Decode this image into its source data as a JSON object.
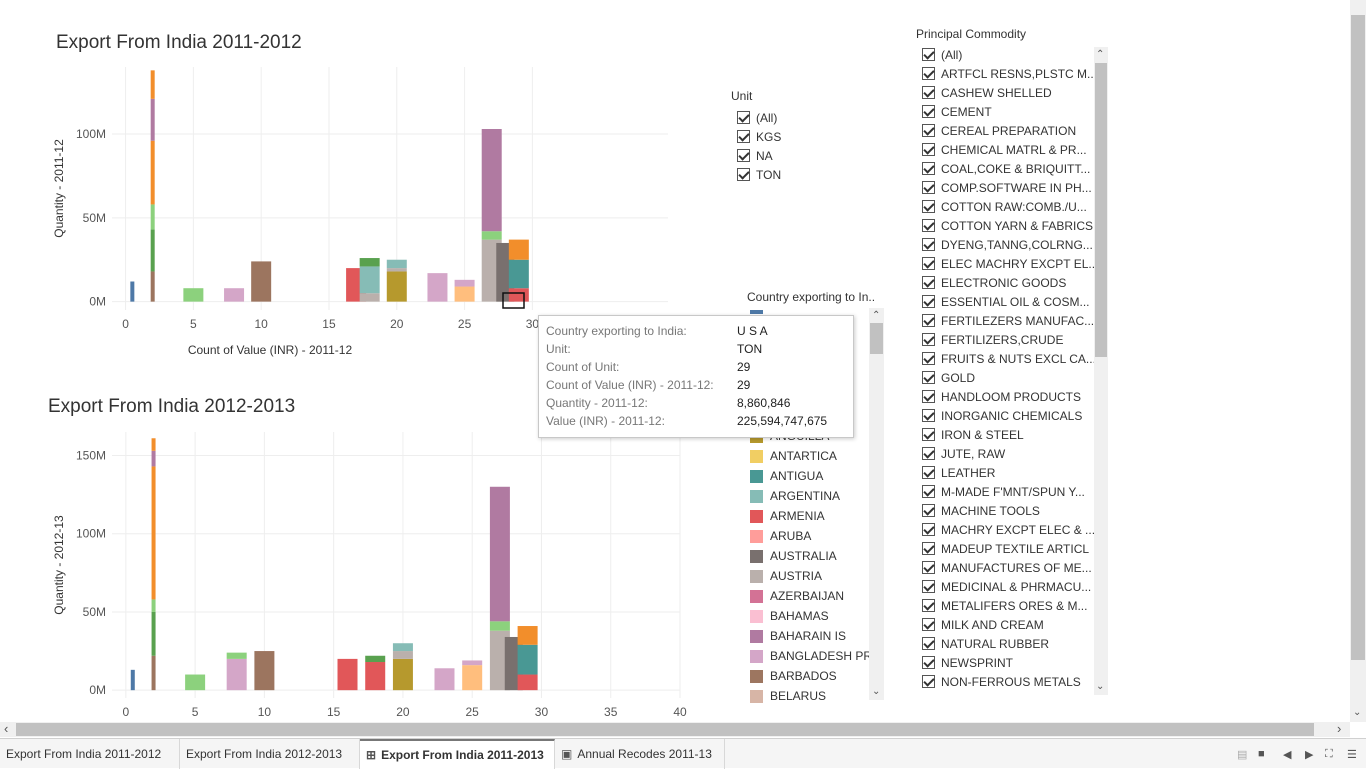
{
  "charts": [
    {
      "title": "Export From India  2011-2012",
      "xlabel": "Count of Value (INR) - 2011-12",
      "ylabel": "Quantity - 2011-12",
      "xticks": [
        "0",
        "5",
        "10",
        "15",
        "20",
        "25",
        "30"
      ],
      "yticks": [
        "0M",
        "50M",
        "100M"
      ]
    },
    {
      "title": "Export From India 2012-2013",
      "xlabel": "",
      "ylabel": "Quantity - 2012-13",
      "xticks": [
        "0",
        "5",
        "10",
        "15",
        "20",
        "25",
        "30",
        "35",
        "40"
      ],
      "yticks": [
        "0M",
        "50M",
        "100M",
        "150M"
      ]
    }
  ],
  "chart_data": [
    {
      "type": "bar",
      "stacked": true,
      "title": "Export From India  2011-2012",
      "xlabel": "Count of Value (INR) - 2011-12",
      "ylabel": "Quantity - 2011-12",
      "xlim": [
        -1,
        40
      ],
      "ylim": [
        -5,
        140
      ],
      "grid": true,
      "bars": [
        {
          "x": 0.5,
          "segments": [
            {
              "v": 12,
              "c": "#4e79a7"
            }
          ]
        },
        {
          "x": 2,
          "segments": [
            {
              "v": 18,
              "c": "#9c755f"
            },
            {
              "v": 25,
              "c": "#59a14f"
            },
            {
              "v": 15,
              "c": "#8cd17d"
            },
            {
              "v": 38,
              "c": "#f28e2b"
            },
            {
              "v": 25,
              "c": "#b07aa1"
            },
            {
              "v": 17,
              "c": "#f28e2b"
            }
          ]
        },
        {
          "x": 5,
          "segments": [
            {
              "v": 8,
              "c": "#8cd17d"
            }
          ]
        },
        {
          "x": 8,
          "segments": [
            {
              "v": 8,
              "c": "#d4a6c8"
            }
          ]
        },
        {
          "x": 10,
          "segments": [
            {
              "v": 24,
              "c": "#9c755f"
            }
          ]
        },
        {
          "x": 17,
          "segments": [
            {
              "v": 20,
              "c": "#e15759"
            }
          ]
        },
        {
          "x": 18,
          "segments": [
            {
              "v": 5,
              "c": "#bab0ac"
            },
            {
              "v": 16,
              "c": "#86bcb6"
            },
            {
              "v": 5,
              "c": "#59a14f"
            }
          ]
        },
        {
          "x": 20,
          "segments": [
            {
              "v": 18,
              "c": "#b6992d"
            },
            {
              "v": 2,
              "c": "#bab0ac"
            },
            {
              "v": 5,
              "c": "#86bcb6"
            }
          ]
        },
        {
          "x": 23,
          "segments": [
            {
              "v": 17,
              "c": "#d4a6c8"
            }
          ]
        },
        {
          "x": 25,
          "segments": [
            {
              "v": 9,
              "c": "#ffbe7d"
            },
            {
              "v": 4,
              "c": "#d4a6c8"
            }
          ]
        },
        {
          "x": 27,
          "segments": [
            {
              "v": 37,
              "c": "#bab0ac"
            },
            {
              "v": 5,
              "c": "#8cd17d"
            },
            {
              "v": 61,
              "c": "#b07aa1"
            }
          ]
        },
        {
          "x": 28,
          "segments": [
            {
              "v": 35,
              "c": "#79706e"
            }
          ]
        },
        {
          "x": 29,
          "segments": [
            {
              "v": 8,
              "c": "#e15759"
            },
            {
              "v": 17,
              "c": "#499894"
            },
            {
              "v": 12,
              "c": "#f28e2b"
            }
          ]
        }
      ]
    },
    {
      "type": "bar",
      "stacked": true,
      "title": "Export From India 2012-2013",
      "xlabel": "",
      "ylabel": "Quantity - 2012-13",
      "xlim": [
        -1,
        40
      ],
      "ylim": [
        -5,
        165
      ],
      "grid": true,
      "bars": [
        {
          "x": 0.5,
          "segments": [
            {
              "v": 13,
              "c": "#4e79a7"
            }
          ]
        },
        {
          "x": 2,
          "segments": [
            {
              "v": 22,
              "c": "#9c755f"
            },
            {
              "v": 28,
              "c": "#59a14f"
            },
            {
              "v": 8,
              "c": "#8cd17d"
            },
            {
              "v": 85,
              "c": "#f28e2b"
            },
            {
              "v": 10,
              "c": "#b07aa1"
            },
            {
              "v": 8,
              "c": "#f28e2b"
            }
          ]
        },
        {
          "x": 5,
          "segments": [
            {
              "v": 10,
              "c": "#8cd17d"
            }
          ]
        },
        {
          "x": 8,
          "segments": [
            {
              "v": 20,
              "c": "#d4a6c8"
            },
            {
              "v": 4,
              "c": "#8cd17d"
            }
          ]
        },
        {
          "x": 10,
          "segments": [
            {
              "v": 25,
              "c": "#9c755f"
            }
          ]
        },
        {
          "x": 16,
          "segments": [
            {
              "v": 20,
              "c": "#e15759"
            }
          ]
        },
        {
          "x": 18,
          "segments": [
            {
              "v": 18,
              "c": "#e15759"
            },
            {
              "v": 4,
              "c": "#59a14f"
            }
          ]
        },
        {
          "x": 20,
          "segments": [
            {
              "v": 20,
              "c": "#b6992d"
            },
            {
              "v": 5,
              "c": "#bab0ac"
            },
            {
              "v": 5,
              "c": "#86bcb6"
            }
          ]
        },
        {
          "x": 23,
          "segments": [
            {
              "v": 14,
              "c": "#d4a6c8"
            }
          ]
        },
        {
          "x": 25,
          "segments": [
            {
              "v": 16,
              "c": "#ffbe7d"
            },
            {
              "v": 3,
              "c": "#d4a6c8"
            }
          ]
        },
        {
          "x": 27,
          "segments": [
            {
              "v": 38,
              "c": "#bab0ac"
            },
            {
              "v": 6,
              "c": "#8cd17d"
            },
            {
              "v": 86,
              "c": "#b07aa1"
            }
          ]
        },
        {
          "x": 28,
          "segments": [
            {
              "v": 34,
              "c": "#79706e"
            }
          ]
        },
        {
          "x": 29,
          "segments": [
            {
              "v": 10,
              "c": "#e15759"
            },
            {
              "v": 19,
              "c": "#499894"
            },
            {
              "v": 12,
              "c": "#f28e2b"
            }
          ]
        }
      ]
    }
  ],
  "unit_filter": {
    "title": "Unit",
    "items": [
      "(All)",
      "KGS",
      "NA",
      "TON"
    ]
  },
  "country_legend": {
    "title": "Country exporting to In..",
    "items": [
      {
        "label": "ANGUILLA",
        "color": "#b6992d"
      },
      {
        "label": "ANTARTICA",
        "color": "#f1ce63"
      },
      {
        "label": "ANTIGUA",
        "color": "#499894"
      },
      {
        "label": "ARGENTINA",
        "color": "#86bcb6"
      },
      {
        "label": "ARMENIA",
        "color": "#e15759"
      },
      {
        "label": "ARUBA",
        "color": "#ff9d9a"
      },
      {
        "label": "AUSTRALIA",
        "color": "#79706e"
      },
      {
        "label": "AUSTRIA",
        "color": "#bab0ac"
      },
      {
        "label": "AZERBAIJAN",
        "color": "#d37295"
      },
      {
        "label": "BAHAMAS",
        "color": "#fabfd2"
      },
      {
        "label": "BAHARAIN IS",
        "color": "#b07aa1"
      },
      {
        "label": "BANGLADESH PR",
        "color": "#d4a6c8"
      },
      {
        "label": "BARBADOS",
        "color": "#9d7660"
      },
      {
        "label": "BELARUS",
        "color": "#d7b5a6"
      }
    ]
  },
  "commodity_filter": {
    "title": "Principal Commodity",
    "items": [
      "(All)",
      "ARTFCL RESNS,PLSTC M...",
      "CASHEW SHELLED",
      "CEMENT",
      "CEREAL PREPARATION",
      "CHEMICAL MATRL & PR...",
      "COAL,COKE & BRIQUITT...",
      "COMP.SOFTWARE IN PH...",
      "COTTON RAW:COMB./U...",
      "COTTON YARN & FABRICS",
      "DYENG,TANNG,COLRNG...",
      "ELEC MACHRY EXCPT EL...",
      "ELECTRONIC GOODS",
      "ESSENTIAL OIL & COSM...",
      "FERTILEZERS MANUFAC...",
      "FERTILIZERS,CRUDE",
      "FRUITS & NUTS EXCL CA...",
      "GOLD",
      "HANDLOOM PRODUCTS",
      "INORGANIC CHEMICALS",
      "IRON & STEEL",
      "JUTE, RAW",
      "LEATHER",
      "M-MADE F'MNT/SPUN Y...",
      "MACHINE TOOLS",
      "MACHRY EXCPT ELEC & ...",
      "MADEUP TEXTILE ARTICL",
      "MANUFACTURES OF ME...",
      "MEDICINAL & PHRMACU...",
      "METALIFERS ORES & M...",
      "MILK AND CREAM",
      "NATURAL RUBBER",
      "NEWSPRINT",
      "NON-FERROUS METALS"
    ]
  },
  "tooltip": {
    "rows": [
      {
        "key": "Country exporting to India:",
        "value": "U S A"
      },
      {
        "key": "Unit:",
        "value": "TON"
      },
      {
        "key": "Count of Unit:",
        "value": "29"
      },
      {
        "key": "Count of Value (INR) - 2011-12:",
        "value": "29"
      },
      {
        "key": "Quantity - 2011-12:",
        "value": "8,860,846"
      },
      {
        "key": "Value (INR) - 2011-12:",
        "value": "225,594,747,675"
      }
    ]
  },
  "tabs": [
    {
      "label": "Export From India  2011-2012",
      "icon": ""
    },
    {
      "label": "Export From India 2012-2013",
      "icon": ""
    },
    {
      "label": "Export From India 2011-2013",
      "icon": "dashboard-icon",
      "active": true
    },
    {
      "label": "Annual Recodes 2011-13",
      "icon": "story-icon"
    }
  ]
}
